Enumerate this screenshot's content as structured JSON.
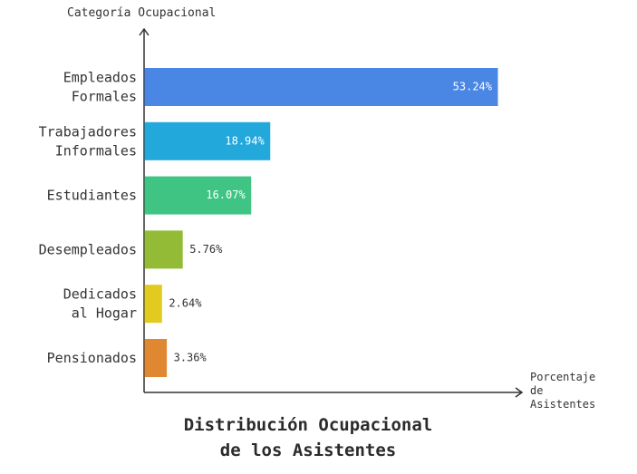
{
  "chart_data": {
    "type": "bar",
    "orientation": "horizontal",
    "title_lines": [
      "Distribución Ocupacional",
      "de los Asistentes"
    ],
    "ylabel": "Categoría Ocupacional",
    "xlabel_lines": [
      "Porcentaje",
      "de",
      "Asistentes"
    ],
    "categories": [
      {
        "lines": [
          "Empleados",
          "Formales"
        ],
        "value": 53.24,
        "label": "53.24%",
        "color": "#4a86e4",
        "label_inside": true
      },
      {
        "lines": [
          "Trabajadores",
          "Informales"
        ],
        "value": 18.94,
        "label": "18.94%",
        "color": "#22a8db",
        "label_inside": true
      },
      {
        "lines": [
          "Estudiantes"
        ],
        "value": 16.07,
        "label": "16.07%",
        "color": "#3fc483",
        "label_inside": true
      },
      {
        "lines": [
          "Desempleados"
        ],
        "value": 5.76,
        "label": "5.76%",
        "color": "#93bb36",
        "label_inside": false
      },
      {
        "lines": [
          "Dedicados",
          "al Hogar"
        ],
        "value": 2.64,
        "label": "2.64%",
        "color": "#e2cb1f",
        "label_inside": false
      },
      {
        "lines": [
          "Pensionados"
        ],
        "value": 3.36,
        "label": "3.36%",
        "color": "#e08732",
        "label_inside": false
      }
    ],
    "xlim": [
      0,
      56
    ],
    "grid": false,
    "axis_color": "#333333"
  }
}
